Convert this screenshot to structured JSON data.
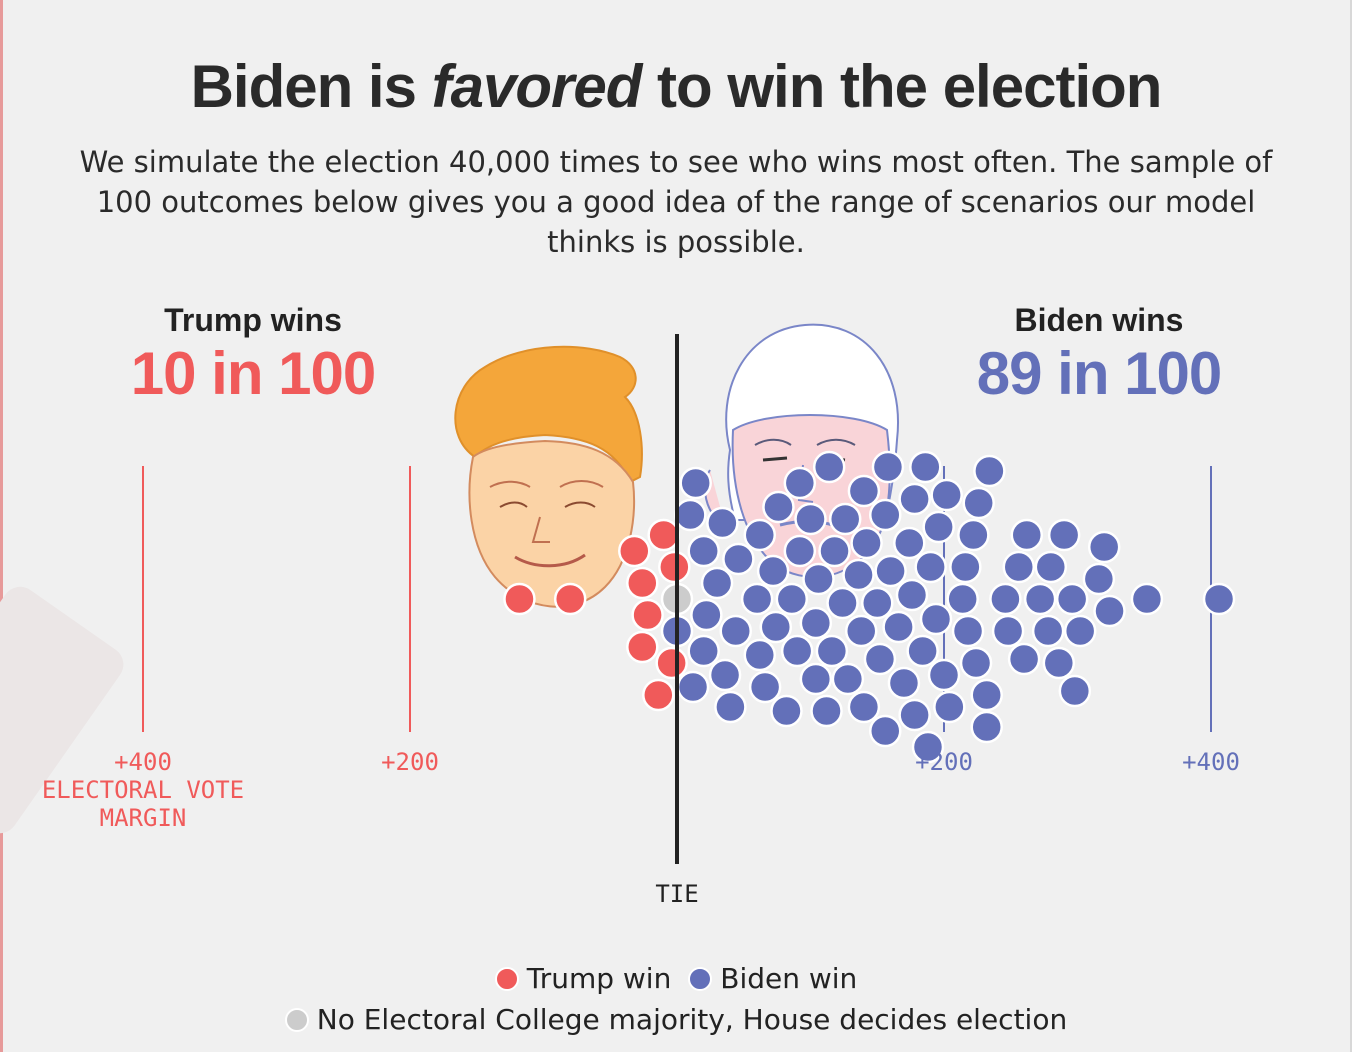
{
  "title": {
    "part1": "Biden is ",
    "emph": "favored",
    "part2": " to win the election"
  },
  "subtitle": "We simulate the election 40,000 times to see who wins most often. The sample of 100 outcomes below gives you a good idea of the range of scenarios our model thinks is possible.",
  "trump": {
    "label": "Trump wins",
    "count": "10 in 100"
  },
  "biden": {
    "label": "Biden wins",
    "count": "89 in 100"
  },
  "axis": {
    "tick_left_400": "+400",
    "tick_left_200": "+200",
    "tick_right_200": "+200",
    "tick_right_400": "+400",
    "axis_title_line1": "ELECTORAL VOTE",
    "axis_title_line2": "MARGIN",
    "tie_label": "TIE"
  },
  "legend": {
    "trump": "Trump win",
    "biden": "Biden win",
    "tie": "No Electoral College majority, House decides election"
  },
  "colors": {
    "trump": "#f05a5a",
    "biden": "#6370b9",
    "tie": "#cccccc",
    "background": "#f0f0f0",
    "tie_line": "#222222"
  },
  "chart_data": {
    "type": "scatter",
    "description_of_encoding": "beeswarm of 100 simulated outcomes; x = electoral vote margin (negative = Trump, positive = Biden)",
    "xlim": [
      -400,
      400
    ],
    "ticks": [
      -400,
      -200,
      200,
      400
    ],
    "series": [
      {
        "name": "Trump win",
        "values": [
          -2,
          -4,
          -10,
          -14,
          -22,
          -26,
          -26,
          -32,
          -80,
          -118
        ]
      },
      {
        "name": "No Electoral College majority, House decides election",
        "values": [
          0
        ]
      },
      {
        "name": "Biden win",
        "values": [
          0,
          10,
          12,
          14,
          20,
          20,
          22,
          30,
          34,
          36,
          40,
          44,
          46,
          60,
          62,
          62,
          66,
          72,
          74,
          76,
          82,
          86,
          90,
          92,
          92,
          100,
          104,
          104,
          106,
          112,
          114,
          116,
          118,
          124,
          126,
          128,
          136,
          138,
          140,
          140,
          142,
          150,
          152,
          156,
          156,
          158,
          160,
          166,
          170,
          174,
          176,
          178,
          178,
          184,
          186,
          188,
          190,
          194,
          196,
          200,
          202,
          204,
          214,
          216,
          218,
          222,
          224,
          226,
          232,
          232,
          234,
          246,
          248,
          256,
          260,
          262,
          272,
          278,
          280,
          286,
          290,
          296,
          298,
          302,
          316,
          320,
          324,
          352,
          406
        ]
      }
    ]
  }
}
